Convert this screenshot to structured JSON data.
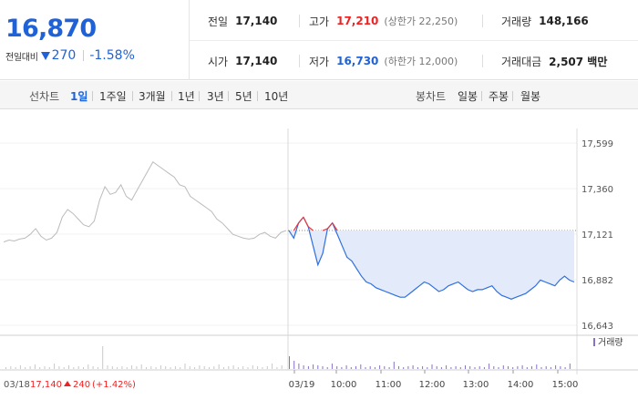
{
  "summary": {
    "price": "16,870",
    "change_label": "전일대비",
    "change_amount": "270",
    "change_rate": "-1.58%",
    "prev_close": {
      "label": "전일",
      "value": "17,140"
    },
    "open": {
      "label": "시가",
      "value": "17,140"
    },
    "high": {
      "label": "고가",
      "value": "17,210",
      "limit_label": "(상한가 22,250)"
    },
    "low": {
      "label": "저가",
      "value": "16,730",
      "limit_label": "(하한가 12,000)"
    },
    "volume": {
      "label": "거래량",
      "value": "148,166"
    },
    "amount": {
      "label": "거래대금",
      "value": "2,507 백만"
    }
  },
  "toolbar": {
    "line_label": "선차트",
    "periods": [
      "1일",
      "1주일",
      "3개월",
      "1년",
      "3년",
      "5년",
      "10년"
    ],
    "active_period": "1일",
    "candle_label": "봉차트",
    "candles": [
      "일봉",
      "주봉",
      "월봉"
    ]
  },
  "chart_data": {
    "type": "line",
    "ylim": [
      16643,
      17599
    ],
    "y_ticks": [
      "17,599",
      "17,360",
      "17,121",
      "16,882",
      "16,643"
    ],
    "x_tick_labels": [
      "03/18",
      "03/19",
      "10:00",
      "11:00",
      "12:00",
      "13:00",
      "14:00",
      "15:00"
    ],
    "prev_day_label": {
      "date": "03/18",
      "close": "17,140",
      "change": "240",
      "rate": "(+1.42%)"
    },
    "volume_legend": "거래량",
    "reference_price": 17140,
    "series": [
      {
        "values": [
          17080,
          17090,
          17085,
          17095,
          17100,
          17120,
          17150,
          17110,
          17090,
          17100,
          17130,
          17210,
          17250,
          17230,
          17200,
          17170,
          17160,
          17190,
          17300,
          17370,
          17330,
          17340,
          17380,
          17320,
          17300,
          17350,
          17400,
          17450,
          17500,
          17480,
          17460,
          17440,
          17420,
          17380,
          17370,
          17320,
          17300,
          17280,
          17260,
          17240,
          17200,
          17180,
          17150,
          17120,
          17110,
          17100,
          17095,
          17100,
          17120,
          17130,
          17110,
          17100,
          17130,
          17140
        ]
      },
      {
        "values": [
          17140,
          17100,
          17180,
          17210,
          17160,
          17060,
          16960,
          17020,
          17150,
          17180,
          17120,
          17060,
          17000,
          16980,
          16940,
          16900,
          16870,
          16860,
          16840,
          16830,
          16820,
          16810,
          16800,
          16790,
          16790,
          16810,
          16830,
          16850,
          16870,
          16860,
          16840,
          16820,
          16830,
          16850,
          16860,
          16870,
          16850,
          16830,
          16820,
          16830,
          16830,
          16840,
          16850,
          16820,
          16800,
          16790,
          16780,
          16790,
          16800,
          16810,
          16830,
          16850,
          16880,
          16870,
          16860,
          16850,
          16880,
          16900,
          16880,
          16870
        ]
      }
    ]
  }
}
